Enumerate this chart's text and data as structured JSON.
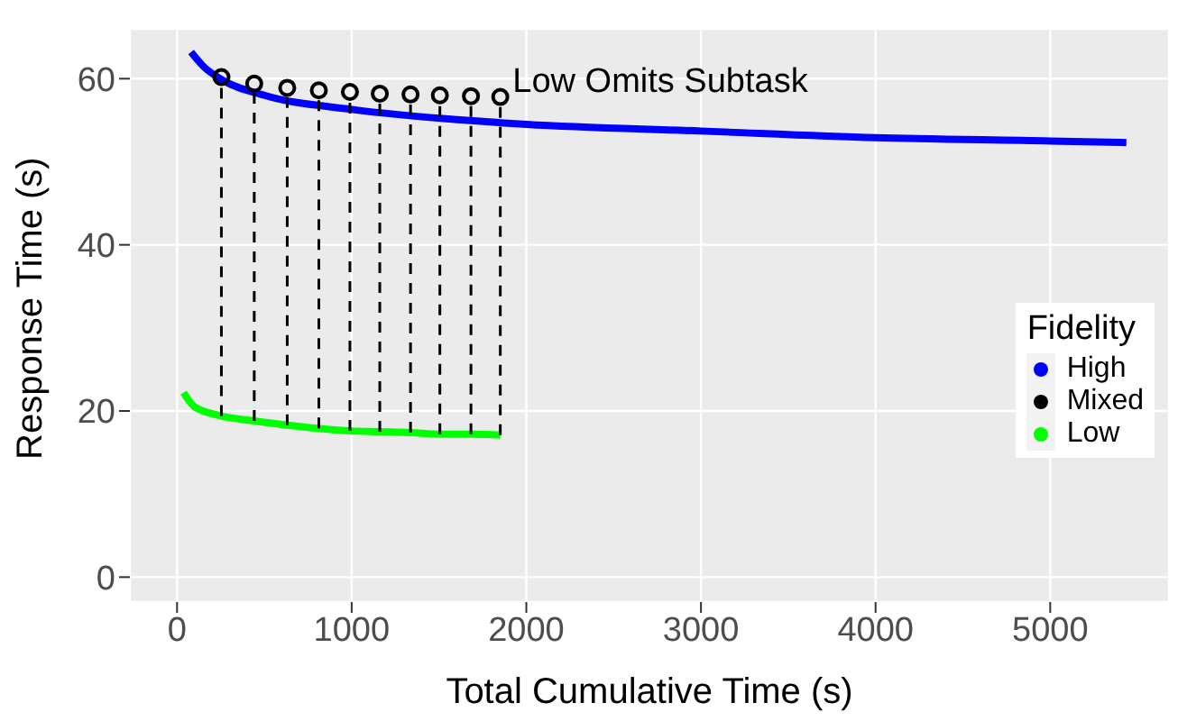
{
  "chart_data": {
    "type": "line",
    "xlabel": "Total Cumulative Time (s)",
    "ylabel": "Response Time (s)",
    "legend_title": "Fidelity",
    "xlim": [
      -270,
      5680
    ],
    "ylim": [
      -3,
      66
    ],
    "xticks": [
      0,
      1000,
      2000,
      3000,
      4000,
      5000
    ],
    "yticks": [
      0,
      20,
      40,
      60
    ],
    "grid": true,
    "legend": "right",
    "marker": "none",
    "line_style": "solid",
    "annotations": [
      "Low Omits Subtask"
    ],
    "series": [
      {
        "name": "High",
        "color": "#0000ff",
        "x": [
          80,
          150,
          254,
          500,
          1000,
          1851,
          2000,
          3000,
          4000,
          5000,
          5436
        ],
        "values": [
          63.2,
          61.5,
          59.9,
          58,
          56.3,
          54.7,
          54.5,
          53.7,
          52.9,
          52.5,
          52.3
        ]
      },
      {
        "name": "Mixed",
        "color": "#000000",
        "type": "scatter",
        "marker": "circle",
        "x": [
          254,
          442,
          631,
          812,
          990,
          1161,
          1337,
          1505,
          1683,
          1851
        ],
        "values": [
          60.2,
          59.4,
          58.9,
          58.6,
          58.4,
          58.2,
          58.1,
          58,
          57.9,
          57.8
        ]
      },
      {
        "name": "Low",
        "color": "#00ff00",
        "x": [
          37,
          100,
          254,
          442,
          631,
          812,
          990,
          1161,
          1337,
          1505,
          1683,
          1851
        ],
        "values": [
          22.2,
          20.5,
          19.4,
          18.8,
          18.3,
          17.9,
          17.6,
          17.5,
          17.4,
          17.2,
          17.2,
          17.1
        ]
      },
      {
        "color": "#000000",
        "line_style": "dashed",
        "x": [
          254,
          254
        ],
        "values": [
          19.4,
          59.6
        ]
      },
      {
        "color": "#000000",
        "line_style": "dashed",
        "x": [
          442,
          442
        ],
        "values": [
          18.8,
          58.8
        ]
      },
      {
        "color": "#000000",
        "line_style": "dashed",
        "x": [
          631,
          631
        ],
        "values": [
          18.3,
          58.3
        ]
      },
      {
        "color": "#000000",
        "line_style": "dashed",
        "x": [
          812,
          812
        ],
        "values": [
          17.9,
          58
        ]
      },
      {
        "color": "#000000",
        "line_style": "dashed",
        "x": [
          990,
          990
        ],
        "values": [
          17.6,
          57.8
        ]
      },
      {
        "color": "#000000",
        "line_style": "dashed",
        "x": [
          1161,
          1161
        ],
        "values": [
          17.5,
          57.6
        ]
      },
      {
        "color": "#000000",
        "line_style": "dashed",
        "x": [
          1337,
          1337
        ],
        "values": [
          17.4,
          57.5
        ]
      },
      {
        "color": "#000000",
        "line_style": "dashed",
        "x": [
          1505,
          1505
        ],
        "values": [
          17.2,
          57.4
        ]
      },
      {
        "color": "#000000",
        "line_style": "dashed",
        "x": [
          1683,
          1683
        ],
        "values": [
          17.2,
          57.3
        ]
      },
      {
        "color": "#000000",
        "line_style": "dashed",
        "x": [
          1851,
          1851
        ],
        "values": [
          17.1,
          57.2
        ]
      }
    ]
  }
}
